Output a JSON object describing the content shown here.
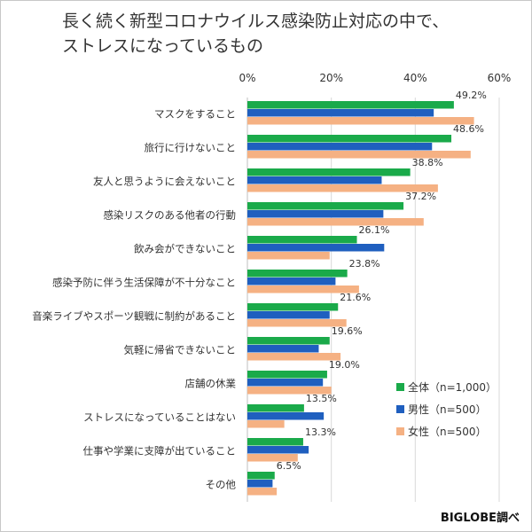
{
  "title_lines": [
    "長く続く新型コロナウイルス感染防止対応の中で、",
    "ストレスになっているもの"
  ],
  "credit": "BIGLOBE調べ",
  "colors": {
    "all": "#1aaa4a",
    "male": "#1f5fbf",
    "female": "#f5b183",
    "grid": "#d9d9d9"
  },
  "chart_data": {
    "type": "bar",
    "orientation": "horizontal",
    "title": "長く続く新型コロナウイルス感染防止対応の中で、ストレスになっているもの",
    "x_ticks": [
      "0%",
      "20%",
      "40%",
      "60%"
    ],
    "xlim": [
      0,
      60
    ],
    "grid": true,
    "legend_position": "right",
    "categories": [
      "マスクをすること",
      "旅行に行けないこと",
      "友人と思うように会えないこと",
      "感染リスクのある他者の行動",
      "飲み会ができないこと",
      "感染予防に伴う生活保障が不十分なこと",
      "音楽ライブやスポーツ観戦に制約があること",
      "気軽に帰省できないこと",
      "店舗の休業",
      "ストレスになっていることはない",
      "仕事や学業に支障が出ていること",
      "その他"
    ],
    "series": [
      {
        "name": "全体（n=1,000）",
        "color": "#1aaa4a",
        "values": [
          49.2,
          48.6,
          38.8,
          37.2,
          26.1,
          23.8,
          21.6,
          19.6,
          19.0,
          13.5,
          13.3,
          6.5
        ]
      },
      {
        "name": "男性（n=500）",
        "color": "#1f5fbf",
        "values": [
          44.4,
          44.0,
          32.0,
          32.4,
          32.6,
          21.0,
          19.6,
          17.0,
          18.0,
          18.2,
          14.6,
          6.0
        ]
      },
      {
        "name": "女性（n=500）",
        "color": "#f5b183",
        "values": [
          54.0,
          53.2,
          45.4,
          42.0,
          19.6,
          26.6,
          23.6,
          22.2,
          20.0,
          8.8,
          12.0,
          7.0
        ]
      }
    ],
    "data_labels": [
      "49.2%",
      "48.6%",
      "38.8%",
      "37.2%",
      "26.1%",
      "23.8%",
      "21.6%",
      "19.6%",
      "19.0%",
      "13.5%",
      "13.3%",
      "6.5%"
    ]
  }
}
